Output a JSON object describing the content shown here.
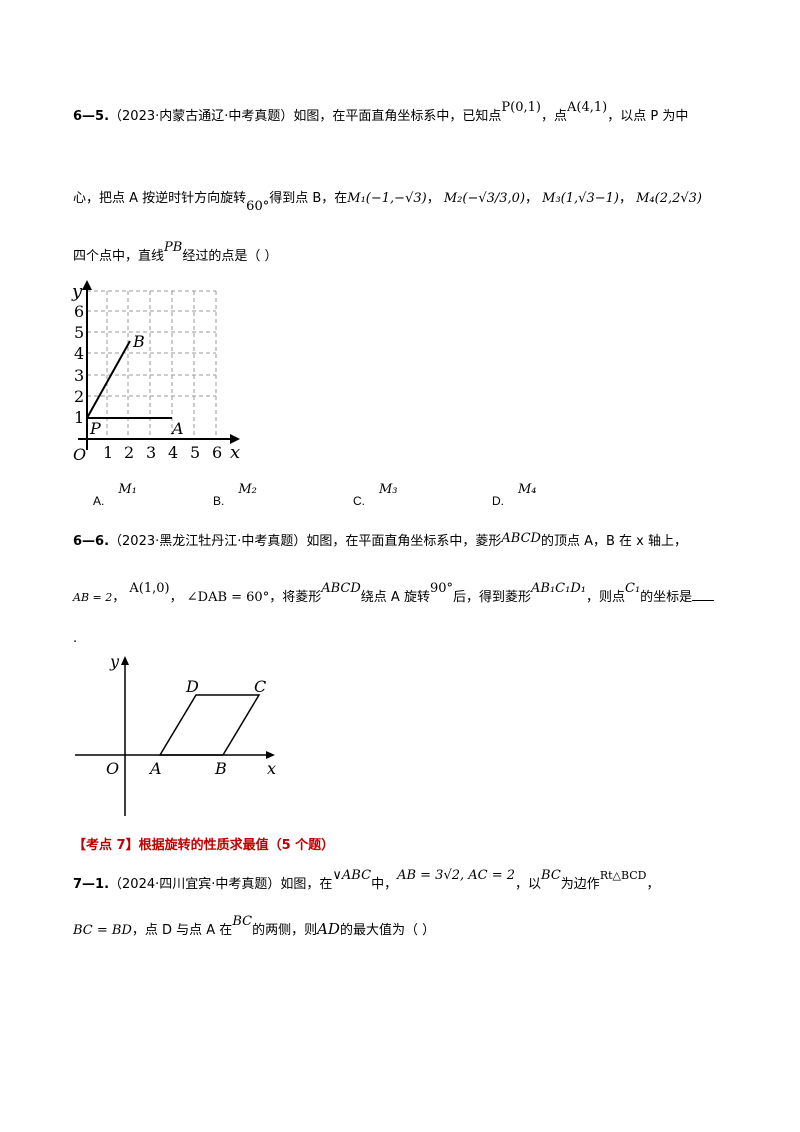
{
  "q65": {
    "number": "6—5.",
    "source": "（2023·内蒙古通辽·中考真题）",
    "line1_text": "如图，在平面直角坐标系中，已知点",
    "P": "P(0,1)",
    "comma1": "，点",
    "A": "A(4,1)",
    "line1_end": "，以点 P 为中",
    "line2_start": "心，把点 A 按逆时针方向旋转",
    "angle": "60°",
    "line2_mid": "得到点 B，在",
    "M1": "M₁(−1,−√3)",
    "M2": "M₂(−√3/3,0)",
    "M3": "M₃(1,√3−1)",
    "M4": "M₄(2,2√3)",
    "line3_start": "四个点中，直线",
    "PB": "PB",
    "line3_end": "经过的点是（    ）",
    "options": [
      {
        "label": "A.",
        "value": "M₁"
      },
      {
        "label": "B.",
        "value": "M₂"
      },
      {
        "label": "C.",
        "value": "M₃"
      },
      {
        "label": "D.",
        "value": "M₄"
      }
    ],
    "graph": {
      "x_ticks": [
        "1",
        "2",
        "3",
        "4",
        "5",
        "6"
      ],
      "y_ticks": [
        "1",
        "2",
        "3",
        "4",
        "5",
        "6"
      ],
      "x_label": "x",
      "y_label": "y",
      "origin_label": "O",
      "point_labels": {
        "P": "P",
        "A": "A",
        "B": "B"
      }
    }
  },
  "q66": {
    "number": "6—6.",
    "source": "（2023·黑龙江牡丹江·中考真题）",
    "line1_text": "如图，在平面直角坐标系中，菱形",
    "ABCD": "ABCD",
    "line1_end": "的顶点 A，B 在 x 轴上，",
    "AB": "AB = 2",
    "A": "A(1,0)",
    "angle": "∠DAB = 60°",
    "line2_mid": "，将菱形",
    "ABCD2": "ABCD",
    "rotate": "绕点 A 旋转",
    "deg": "90°",
    "line2_after": "后，得到菱形",
    "AB1C1D1": "AB₁C₁D₁",
    "line2_then": "，则点",
    "C1": "C₁",
    "line2_end": "的坐标是",
    "period": ".",
    "graph": {
      "labels": {
        "y": "y",
        "x": "x",
        "O": "O",
        "A": "A",
        "B": "B",
        "C": "C",
        "D": "D"
      }
    }
  },
  "section": {
    "title": "【考点 7】根据旋转的性质求最值（5 个题）"
  },
  "q71": {
    "number": "7—1.",
    "source": "（2024·四川宜宾·中考真题）",
    "line1_a": "如图，在",
    "triangle": "∨ABC",
    "line1_b": "中，",
    "sides": "AB = 3√2, AC = 2",
    "line1_c": "，以",
    "BC": "BC",
    "line1_d": "为边作",
    "rt": "Rt△BCD",
    "line1_e": "，",
    "eq": "BC = BD",
    "line2_a": "，点 D 与点 A 在",
    "BC2": "BC",
    "line2_b": "的两侧，则",
    "AD": "AD",
    "line2_c": "的最大值为（    ）"
  }
}
